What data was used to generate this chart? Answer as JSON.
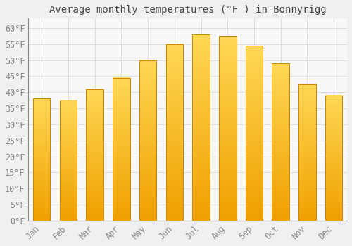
{
  "title": "Average monthly temperatures (°F ) in Bonnyrigg",
  "months": [
    "Jan",
    "Feb",
    "Mar",
    "Apr",
    "May",
    "Jun",
    "Jul",
    "Aug",
    "Sep",
    "Oct",
    "Nov",
    "Dec"
  ],
  "values": [
    38,
    37.5,
    41,
    44.5,
    50,
    55,
    58,
    57.5,
    54.5,
    49,
    42.5,
    39
  ],
  "bar_color_top": "#FFD040",
  "bar_color_bottom": "#F5A800",
  "bar_edge_color": "#C8860A",
  "background_color": "#F0F0F0",
  "plot_bg_color": "#F8F8F8",
  "grid_color": "#DDDDDD",
  "ylim": [
    0,
    63
  ],
  "yticks": [
    0,
    5,
    10,
    15,
    20,
    25,
    30,
    35,
    40,
    45,
    50,
    55,
    60
  ],
  "ylabel_suffix": "°F",
  "title_fontsize": 10,
  "tick_fontsize": 8.5,
  "tick_font_color": "#888888",
  "bar_width": 0.65
}
